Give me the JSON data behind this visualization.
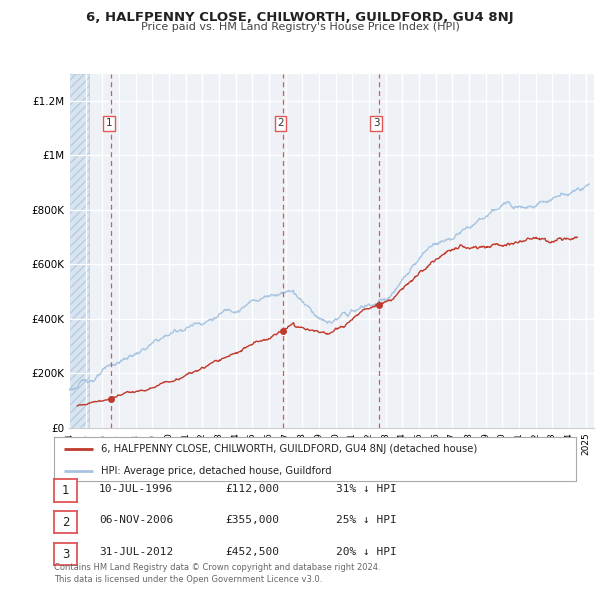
{
  "title": "6, HALFPENNY CLOSE, CHILWORTH, GUILDFORD, GU4 8NJ",
  "subtitle": "Price paid vs. HM Land Registry's House Price Index (HPI)",
  "legend_line1": "6, HALFPENNY CLOSE, CHILWORTH, GUILDFORD, GU4 8NJ (detached house)",
  "legend_line2": "HPI: Average price, detached house, Guildford",
  "transactions": [
    {
      "num": 1,
      "date": "10-JUL-1996",
      "year": 1996.53,
      "price": 112000,
      "pct": "31% ↓ HPI"
    },
    {
      "num": 2,
      "date": "06-NOV-2006",
      "year": 2006.84,
      "price": 355000,
      "pct": "25% ↓ HPI"
    },
    {
      "num": 3,
      "date": "31-JUL-2012",
      "year": 2012.58,
      "price": 452500,
      "pct": "20% ↓ HPI"
    }
  ],
  "hpi_color": "#a8c4e0",
  "price_color": "#c0392b",
  "vline_color": "#e05555",
  "dot_color": "#c0392b",
  "background_chart": "#eef2f7",
  "ylim": [
    0,
    1300000
  ],
  "xlim_start": 1994.0,
  "xlim_end": 2025.5,
  "footer_line1": "Contains HM Land Registry data © Crown copyright and database right 2024.",
  "footer_line2": "This data is licensed under the Open Government Licence v3.0."
}
